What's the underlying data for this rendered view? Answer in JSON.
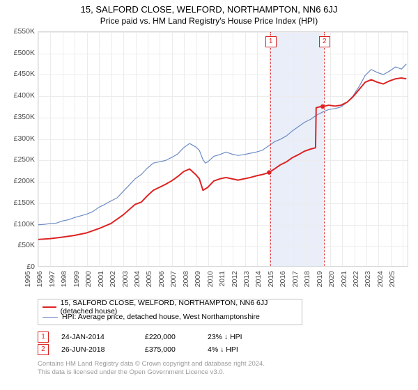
{
  "title": "15, SALFORD CLOSE, WELFORD, NORTHAMPTON, NN6 6JJ",
  "subtitle": "Price paid vs. HM Land Registry's House Price Index (HPI)",
  "chart": {
    "type": "line",
    "background_color": "#ffffff",
    "grid_color": "#ececec",
    "border_color": "#d8d8d8",
    "title_fontsize": 13,
    "subtitle_fontsize": 12,
    "tick_fontsize": 10.5,
    "tick_color": "#4a4a4a",
    "x": {
      "min": 1995,
      "max": 2025.5,
      "ticks": [
        1995,
        1996,
        1997,
        1998,
        1999,
        2000,
        2001,
        2002,
        2003,
        2004,
        2005,
        2006,
        2007,
        2008,
        2009,
        2010,
        2011,
        2012,
        2013,
        2014,
        2015,
        2016,
        2017,
        2018,
        2019,
        2020,
        2021,
        2022,
        2023,
        2024,
        2025
      ]
    },
    "y": {
      "min": 0,
      "max": 550000,
      "prefix": "£",
      "suffix": "K",
      "divisor": 1000,
      "ticks": [
        0,
        50000,
        100000,
        150000,
        200000,
        250000,
        300000,
        350000,
        400000,
        450000,
        500000,
        550000
      ]
    },
    "shaded_band": {
      "from": 2014.07,
      "to": 2018.49,
      "color": "#e9eef9"
    },
    "markers": [
      {
        "label": "1",
        "x": 2014.07
      },
      {
        "label": "2",
        "x": 2018.49
      }
    ],
    "marker_box": {
      "border_color": "#dd2222",
      "text_color": "#dd2222",
      "bg_color": "#ffffff"
    },
    "marker_line_color": "#dd2222",
    "series": [
      {
        "name": "price_paid",
        "label": "15, SALFORD CLOSE, WELFORD, NORTHAMPTON, NN6 6JJ (detached house)",
        "color": "#dd2222",
        "line_width": 2,
        "points": [
          [
            1995,
            62500
          ],
          [
            1996,
            64500
          ],
          [
            1997,
            68000
          ],
          [
            1998,
            72000
          ],
          [
            1999,
            78000
          ],
          [
            2000,
            88000
          ],
          [
            2001,
            100000
          ],
          [
            2002,
            120000
          ],
          [
            2003,
            145000
          ],
          [
            2003.5,
            150000
          ],
          [
            2004,
            165000
          ],
          [
            2004.5,
            178000
          ],
          [
            2005,
            185000
          ],
          [
            2005.5,
            192000
          ],
          [
            2006,
            200000
          ],
          [
            2006.5,
            210000
          ],
          [
            2007,
            222000
          ],
          [
            2007.5,
            228000
          ],
          [
            2008,
            215000
          ],
          [
            2008.3,
            205000
          ],
          [
            2008.6,
            178000
          ],
          [
            2009,
            185000
          ],
          [
            2009.5,
            200000
          ],
          [
            2010,
            205000
          ],
          [
            2010.5,
            208000
          ],
          [
            2011,
            205000
          ],
          [
            2011.5,
            202000
          ],
          [
            2012,
            205000
          ],
          [
            2012.5,
            208000
          ],
          [
            2013,
            212000
          ],
          [
            2013.5,
            215000
          ],
          [
            2014.07,
            220000
          ],
          [
            2014.5,
            228000
          ],
          [
            2015,
            238000
          ],
          [
            2015.5,
            245000
          ],
          [
            2016,
            255000
          ],
          [
            2016.5,
            262000
          ],
          [
            2017,
            270000
          ],
          [
            2017.5,
            275000
          ],
          [
            2017.9,
            278000
          ],
          [
            2017.95,
            372000
          ],
          [
            2018.2,
            374000
          ],
          [
            2018.49,
            375000
          ],
          [
            2019,
            378000
          ],
          [
            2019.5,
            376000
          ],
          [
            2020,
            378000
          ],
          [
            2020.5,
            385000
          ],
          [
            2021,
            398000
          ],
          [
            2021.5,
            415000
          ],
          [
            2022,
            432000
          ],
          [
            2022.5,
            438000
          ],
          [
            2023,
            432000
          ],
          [
            2023.5,
            428000
          ],
          [
            2024,
            435000
          ],
          [
            2024.5,
            440000
          ],
          [
            2025,
            442000
          ],
          [
            2025.4,
            440000
          ]
        ],
        "sale_dots": [
          {
            "x": 2014.07,
            "y": 220000
          },
          {
            "x": 2018.49,
            "y": 375000
          }
        ]
      },
      {
        "name": "hpi",
        "label": "HPI: Average price, detached house, West Northamptonshire",
        "color": "#6b8bc4",
        "line_width": 1.2,
        "points": [
          [
            1995,
            97000
          ],
          [
            1995.5,
            98000
          ],
          [
            1996,
            100000
          ],
          [
            1996.5,
            101000
          ],
          [
            1997,
            106000
          ],
          [
            1997.5,
            109000
          ],
          [
            1998,
            114000
          ],
          [
            1998.5,
            118000
          ],
          [
            1999,
            122000
          ],
          [
            1999.5,
            128000
          ],
          [
            2000,
            138000
          ],
          [
            2000.5,
            145000
          ],
          [
            2001,
            153000
          ],
          [
            2001.5,
            160000
          ],
          [
            2002,
            175000
          ],
          [
            2002.5,
            190000
          ],
          [
            2003,
            205000
          ],
          [
            2003.5,
            215000
          ],
          [
            2004,
            230000
          ],
          [
            2004.5,
            242000
          ],
          [
            2005,
            245000
          ],
          [
            2005.5,
            248000
          ],
          [
            2006,
            255000
          ],
          [
            2006.5,
            263000
          ],
          [
            2007,
            278000
          ],
          [
            2007.5,
            288000
          ],
          [
            2008,
            280000
          ],
          [
            2008.3,
            272000
          ],
          [
            2008.6,
            250000
          ],
          [
            2008.8,
            242000
          ],
          [
            2009,
            245000
          ],
          [
            2009.5,
            258000
          ],
          [
            2010,
            262000
          ],
          [
            2010.5,
            268000
          ],
          [
            2011,
            263000
          ],
          [
            2011.5,
            260000
          ],
          [
            2012,
            262000
          ],
          [
            2012.5,
            265000
          ],
          [
            2013,
            268000
          ],
          [
            2013.5,
            272000
          ],
          [
            2014,
            282000
          ],
          [
            2014.5,
            292000
          ],
          [
            2015,
            298000
          ],
          [
            2015.5,
            306000
          ],
          [
            2016,
            318000
          ],
          [
            2016.5,
            328000
          ],
          [
            2017,
            338000
          ],
          [
            2017.5,
            345000
          ],
          [
            2018,
            355000
          ],
          [
            2018.5,
            362000
          ],
          [
            2019,
            368000
          ],
          [
            2019.5,
            370000
          ],
          [
            2020,
            374000
          ],
          [
            2020.5,
            385000
          ],
          [
            2021,
            400000
          ],
          [
            2021.5,
            422000
          ],
          [
            2022,
            448000
          ],
          [
            2022.5,
            462000
          ],
          [
            2023,
            455000
          ],
          [
            2023.5,
            450000
          ],
          [
            2024,
            458000
          ],
          [
            2024.5,
            468000
          ],
          [
            2025,
            463000
          ],
          [
            2025.4,
            475000
          ]
        ]
      }
    ]
  },
  "legend": {
    "border_color": "#bfbfbf",
    "fontsize": 10.5
  },
  "sales": [
    {
      "marker": "1",
      "date": "24-JAN-2014",
      "price": "£220,000",
      "delta": "23% ↓ HPI"
    },
    {
      "marker": "2",
      "date": "26-JUN-2018",
      "price": "£375,000",
      "delta": "4% ↓ HPI"
    }
  ],
  "footer": {
    "line1": "Contains HM Land Registry data © Crown copyright and database right 2024.",
    "line2": "This data is licensed under the Open Government Licence v3.0.",
    "color": "#9a9a9a",
    "fontsize": 9.5
  }
}
